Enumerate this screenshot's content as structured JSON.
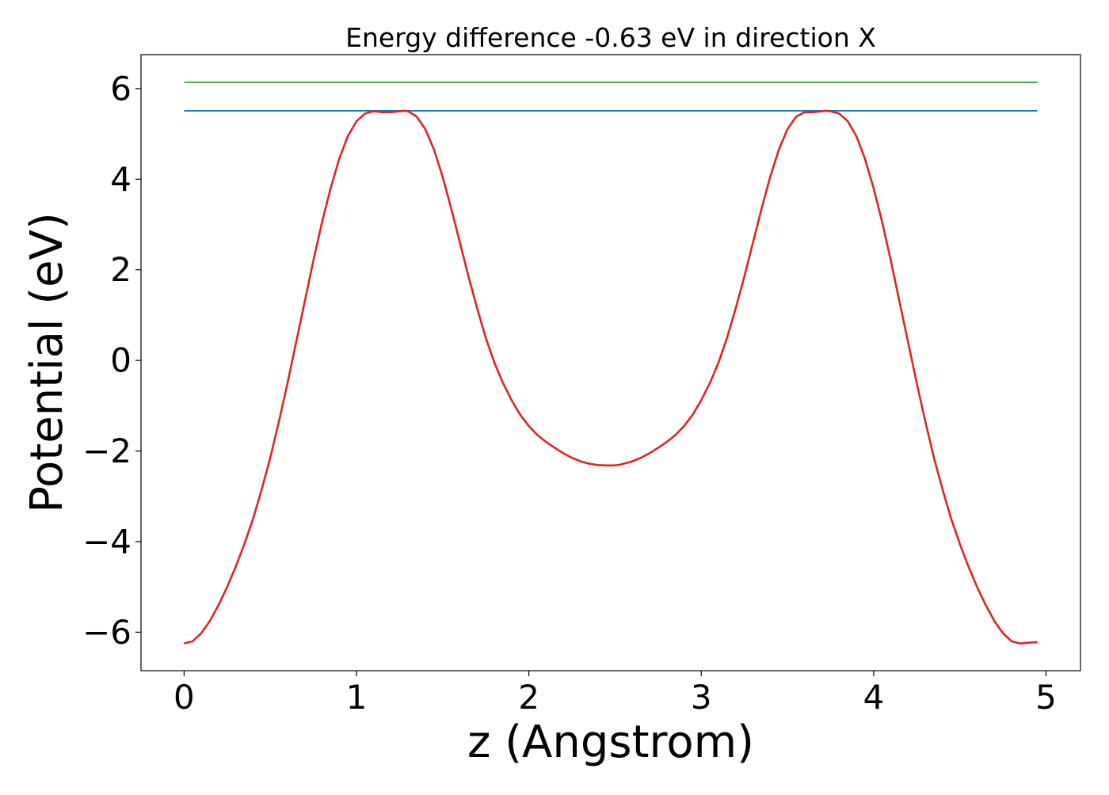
{
  "chart_data": {
    "type": "line",
    "title": "Energy difference -0.63 eV in direction X",
    "xlabel": "z (Angstrom)",
    "ylabel": "Potential (eV)",
    "xlim": [
      -0.25,
      5.2
    ],
    "ylim": [
      -6.85,
      6.75
    ],
    "xticks": [
      {
        "value": 0,
        "label": "0"
      },
      {
        "value": 1,
        "label": "1"
      },
      {
        "value": 2,
        "label": "2"
      },
      {
        "value": 3,
        "label": "3"
      },
      {
        "value": 4,
        "label": "4"
      },
      {
        "value": 5,
        "label": "5"
      }
    ],
    "yticks": [
      {
        "value": -6,
        "label": "−6"
      },
      {
        "value": -4,
        "label": "−4"
      },
      {
        "value": -2,
        "label": "−2"
      },
      {
        "value": 0,
        "label": "0"
      },
      {
        "value": 2,
        "label": "2"
      },
      {
        "value": 4,
        "label": "4"
      },
      {
        "value": 6,
        "label": "6"
      }
    ],
    "grid": false,
    "series": [
      {
        "color": "#2ca02c",
        "x": [
          0,
          4.95
        ],
        "y": [
          6.14,
          6.14
        ]
      },
      {
        "color": "#1f77b4",
        "x": [
          0,
          4.95
        ],
        "y": [
          5.51,
          5.51
        ]
      },
      {
        "color": "#e32222",
        "x": [
          0.0,
          0.05,
          0.1,
          0.15,
          0.2,
          0.25,
          0.3,
          0.35,
          0.4,
          0.45,
          0.5,
          0.55,
          0.6,
          0.65,
          0.7,
          0.75,
          0.8,
          0.85,
          0.9,
          0.95,
          1.0,
          1.05,
          1.1,
          1.15,
          1.2,
          1.25,
          1.27,
          1.3,
          1.35,
          1.4,
          1.45,
          1.5,
          1.55,
          1.6,
          1.65,
          1.7,
          1.75,
          1.8,
          1.85,
          1.9,
          1.95,
          2.0,
          2.05,
          2.1,
          2.15,
          2.2,
          2.25,
          2.3,
          2.35,
          2.4,
          2.45,
          2.48,
          2.52,
          2.55,
          2.6,
          2.65,
          2.7,
          2.75,
          2.8,
          2.85,
          2.9,
          2.95,
          3.0,
          3.05,
          3.1,
          3.15,
          3.2,
          3.25,
          3.3,
          3.35,
          3.4,
          3.45,
          3.5,
          3.55,
          3.6,
          3.65,
          3.7,
          3.72,
          3.75,
          3.8,
          3.85,
          3.9,
          3.95,
          4.0,
          4.05,
          4.1,
          4.15,
          4.2,
          4.25,
          4.3,
          4.35,
          4.4,
          4.45,
          4.5,
          4.55,
          4.6,
          4.65,
          4.7,
          4.75,
          4.8,
          4.85,
          4.9,
          4.95
        ],
        "y": [
          -6.25,
          -6.2,
          -6.02,
          -5.75,
          -5.4,
          -5.0,
          -4.55,
          -4.05,
          -3.5,
          -2.85,
          -2.15,
          -1.35,
          -0.5,
          0.4,
          1.3,
          2.2,
          3.05,
          3.8,
          4.45,
          4.95,
          5.28,
          5.45,
          5.5,
          5.48,
          5.48,
          5.5,
          5.51,
          5.5,
          5.38,
          5.1,
          4.65,
          4.05,
          3.35,
          2.6,
          1.85,
          1.15,
          0.5,
          -0.05,
          -0.5,
          -0.88,
          -1.2,
          -1.45,
          -1.65,
          -1.8,
          -1.93,
          -2.05,
          -2.15,
          -2.23,
          -2.28,
          -2.31,
          -2.32,
          -2.32,
          -2.31,
          -2.28,
          -2.23,
          -2.15,
          -2.05,
          -1.93,
          -1.8,
          -1.65,
          -1.45,
          -1.2,
          -0.88,
          -0.5,
          -0.05,
          0.5,
          1.15,
          1.85,
          2.6,
          3.35,
          4.05,
          4.65,
          5.1,
          5.38,
          5.48,
          5.48,
          5.5,
          5.51,
          5.5,
          5.45,
          5.28,
          4.95,
          4.45,
          3.8,
          3.05,
          2.2,
          1.3,
          0.4,
          -0.5,
          -1.35,
          -2.15,
          -2.85,
          -3.5,
          -4.05,
          -4.55,
          -5.0,
          -5.4,
          -5.75,
          -6.02,
          -6.2,
          -6.25,
          -6.23,
          -6.22
        ]
      }
    ]
  }
}
